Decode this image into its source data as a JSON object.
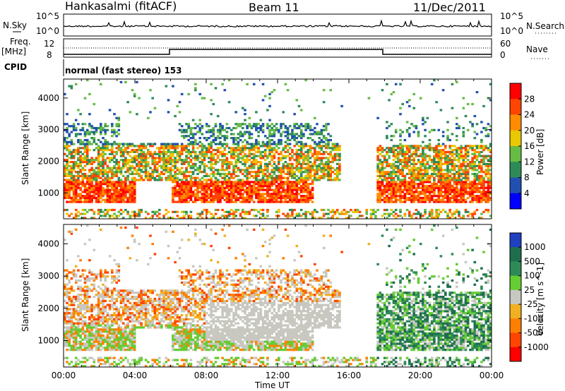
{
  "header": {
    "station": "Hankasalmi (fitACF)",
    "beam": "Beam 11",
    "date": "11/Dec/2011"
  },
  "strip_labels": {
    "nsky": "N.Sky",
    "nsearch": "N.Search",
    "freq": "Freq.",
    "freq_unit": "[MHz]",
    "nave": "Nave",
    "cpid": "CPID",
    "cpid_value": "normal (fast stereo) 153",
    "left_ticks_top": [
      "10^5",
      "10^0"
    ],
    "right_ticks_top": [
      "10^5",
      "10^0"
    ],
    "freq_ticks": [
      "12",
      "8"
    ],
    "nave_ticks": [
      "60",
      "0"
    ]
  },
  "chart_data": [
    {
      "type": "heatmap",
      "panel": "power",
      "ylabel": "Slant Range [km]",
      "xlabel": "Time UT",
      "xlim": [
        "00:00",
        "24:00"
      ],
      "ylim": [
        180,
        4600
      ],
      "x_ticks": [
        "00:00",
        "04:00",
        "08:00",
        "12:00",
        "16:00",
        "20:00",
        "00:00"
      ],
      "y_ticks": [
        1000,
        2000,
        3000,
        4000
      ],
      "colorbar": {
        "label": "Power [dB]",
        "ticks": [
          4,
          8,
          12,
          16,
          20,
          24,
          28
        ],
        "colors": [
          "#0000ff",
          "#2050b0",
          "#2e8b57",
          "#66bb44",
          "#e8c800",
          "#ff8c00",
          "#ff4500",
          "#ff0000"
        ]
      }
    },
    {
      "type": "heatmap",
      "panel": "velocity",
      "ylabel": "Slant Range [km]",
      "xlabel": "Time UT",
      "xlim": [
        "00:00",
        "24:00"
      ],
      "ylim": [
        180,
        4600
      ],
      "x_ticks": [
        "00:00",
        "04:00",
        "08:00",
        "12:00",
        "16:00",
        "20:00",
        "00:00"
      ],
      "y_ticks": [
        1000,
        2000,
        3000,
        4000
      ],
      "colorbar": {
        "label": "Velocity [m s^-1]",
        "ticks": [
          1000,
          500,
          100,
          25,
          -25,
          -100,
          -500,
          -1000
        ],
        "colors": [
          "#2040c0",
          "#1e6e4e",
          "#2e8b57",
          "#66cc33",
          "#c8c8c0",
          "#f0b020",
          "#ff8000",
          "#ff4500",
          "#ff0000"
        ]
      }
    }
  ],
  "xaxis": {
    "label": "Time UT"
  },
  "colors": {
    "axis": "#000000",
    "ground_scatter": "#c0c0b8"
  }
}
